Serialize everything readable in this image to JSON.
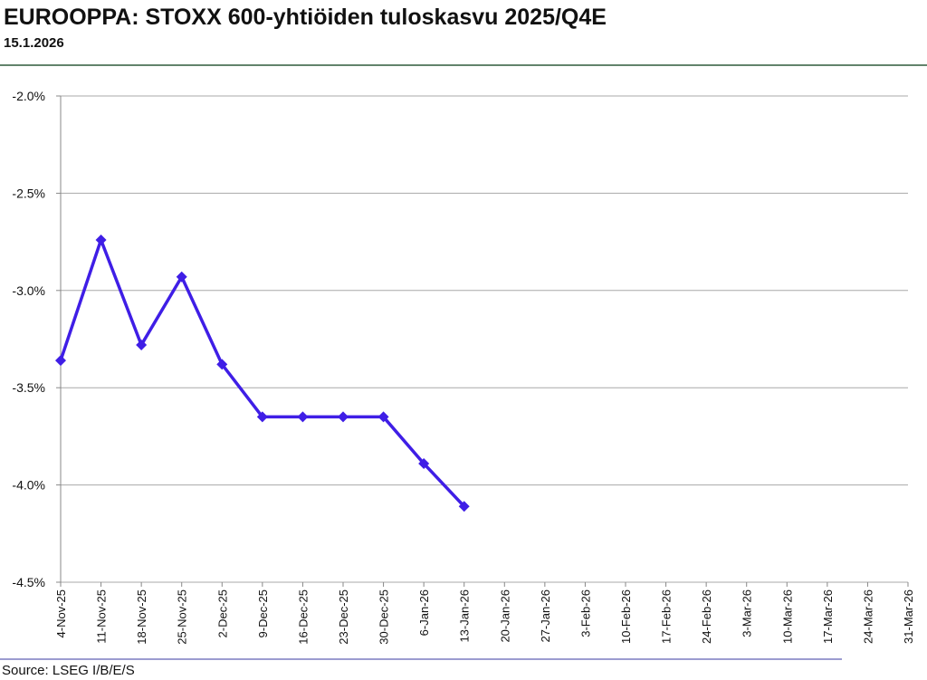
{
  "chart_data": {
    "type": "line",
    "title": "EUROOPPA: STOXX 600-yhtiöiden tuloskasvu 2025/Q4E",
    "subtitle": "15.1.2026",
    "source": "Source: LSEG I/B/E/S",
    "categories": [
      "4-Nov-25",
      "11-Nov-25",
      "18-Nov-25",
      "25-Nov-25",
      "2-Dec-25",
      "9-Dec-25",
      "16-Dec-25",
      "23-Dec-25",
      "30-Dec-25",
      "6-Jan-26",
      "13-Jan-26",
      "20-Jan-26",
      "27-Jan-26",
      "3-Feb-26",
      "10-Feb-26",
      "17-Feb-26",
      "24-Feb-26",
      "3-Mar-26",
      "10-Mar-26",
      "17-Mar-26",
      "24-Mar-26",
      "31-Mar-26"
    ],
    "series": [
      {
        "color": "#3f1ee6",
        "values": [
          -3.36,
          -2.74,
          -3.28,
          -2.93,
          -3.38,
          -3.65,
          -3.65,
          -3.65,
          -3.65,
          -3.89,
          -4.11,
          null,
          null,
          null,
          null,
          null,
          null,
          null,
          null,
          null,
          null,
          null
        ]
      }
    ],
    "ylim": [
      -4.5,
      -2.0
    ],
    "yticks": [
      {
        "value": -4.5,
        "label": "-4.5%"
      },
      {
        "value": -4.0,
        "label": "-4.0%"
      },
      {
        "value": -3.5,
        "label": "-3.5%"
      },
      {
        "value": -3.0,
        "label": "-3.0%"
      },
      {
        "value": -2.5,
        "label": "-2.5%"
      },
      {
        "value": -2.0,
        "label": "-2.0%"
      }
    ],
    "grid": true
  }
}
